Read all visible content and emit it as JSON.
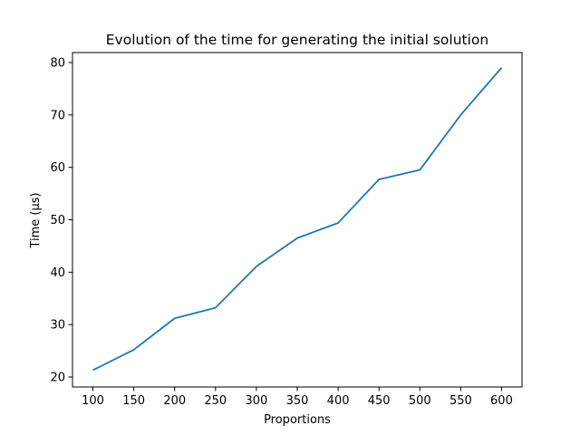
{
  "chart_data": {
    "type": "line",
    "title": "Evolution of the time for generating the initial solution",
    "xlabel": "Proportions",
    "ylabel": "Time (µs)",
    "x": [
      100,
      150,
      200,
      250,
      300,
      350,
      400,
      450,
      500,
      550,
      600
    ],
    "series": [
      {
        "values": [
          21.3,
          25.2,
          31.2,
          33.2,
          41.1,
          46.5,
          49.4,
          57.7,
          59.5,
          70.0,
          79.0
        ],
        "color": "#1f77b4"
      }
    ],
    "xticks": [
      100,
      150,
      200,
      250,
      300,
      350,
      400,
      450,
      500,
      550,
      600
    ],
    "yticks": [
      20,
      30,
      40,
      50,
      60,
      70,
      80
    ],
    "xlim": [
      75,
      625
    ],
    "ylim": [
      18.1,
      81.9
    ],
    "grid": false,
    "legend": "none"
  }
}
